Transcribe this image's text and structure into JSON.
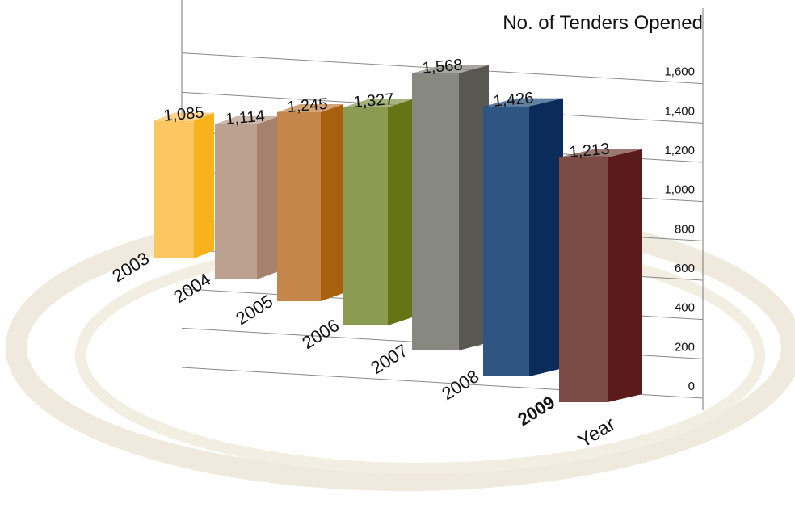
{
  "chart_data": {
    "type": "bar3d",
    "title": "No. of Tenders Opened",
    "x_label": "Year",
    "categories": [
      "2003",
      "2004",
      "2005",
      "2006",
      "2007",
      "2008",
      "2009"
    ],
    "values": [
      1085,
      1114,
      1245,
      1327,
      1568,
      1426,
      1213
    ],
    "value_labels": [
      "1,085",
      "1,114",
      "1,245",
      "1,327",
      "1,568",
      "1,426",
      "1,213"
    ],
    "colors": [
      "#fcc660",
      "#bca090",
      "#c4864a",
      "#8b9b52",
      "#888883",
      "#2f5582",
      "#7b4b45"
    ],
    "side_colors": [
      "#f8b31a",
      "#a6816c",
      "#a8600f",
      "#657516",
      "#585752",
      "#0b2b5a",
      "#5b1a1b"
    ],
    "ylim": [
      0,
      1800
    ],
    "yticks": [
      0,
      200,
      400,
      600,
      800,
      {
        "value": 1000,
        "label": "1,000"
      },
      {
        "value": 1200,
        "label": "1,200"
      },
      {
        "value": 1400,
        "label": "1,400"
      },
      {
        "value": 1600,
        "label": "1,600"
      }
    ],
    "grid": true
  }
}
